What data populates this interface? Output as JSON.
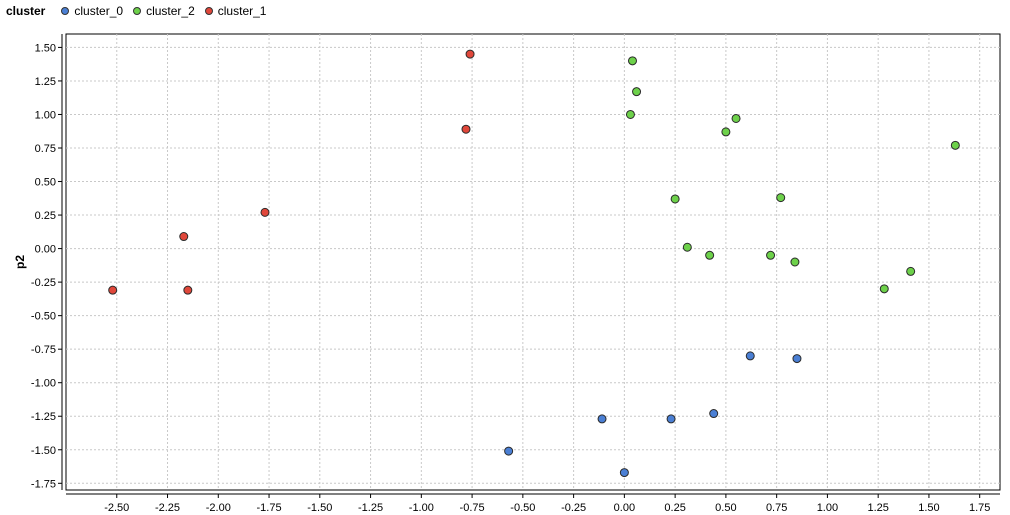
{
  "chart_data": {
    "type": "scatter",
    "title": "",
    "xlabel": "",
    "ylabel": "p2",
    "legend_title": "cluster",
    "legend_position": "top-left",
    "grid": true,
    "xlim": [
      -2.75,
      1.85
    ],
    "ylim": [
      -1.8,
      1.6
    ],
    "x_ticks": [
      -2.5,
      -2.25,
      -2.0,
      -1.75,
      -1.5,
      -1.25,
      -1.0,
      -0.75,
      -0.5,
      -0.25,
      0.0,
      0.25,
      0.5,
      0.75,
      1.0,
      1.25,
      1.5,
      1.75
    ],
    "x_tick_labels": [
      "-2.50",
      "-2.25",
      "-2.00",
      "-1.75",
      "-1.50",
      "-1.25",
      "-1.00",
      "-0.75",
      "-0.50",
      "-0.25",
      "0.00",
      "0.25",
      "0.50",
      "0.75",
      "1.00",
      "1.25",
      "1.50",
      "1.75"
    ],
    "y_ticks": [
      1.5,
      1.25,
      1.0,
      0.75,
      0.5,
      0.25,
      0.0,
      -0.25,
      -0.5,
      -0.75,
      -1.0,
      -1.25,
      -1.5,
      -1.75
    ],
    "y_tick_labels": [
      "1.50",
      "1.25",
      "1.00",
      "0.75",
      "0.50",
      "0.25",
      "0.00",
      "-0.25",
      "-0.50",
      "-0.75",
      "-1.00",
      "-1.25",
      "-1.50",
      "-1.75"
    ],
    "series": [
      {
        "name": "cluster_0",
        "color": "#4a7fd4",
        "x": [
          -0.57,
          -0.11,
          0.0,
          0.23,
          0.44,
          0.62,
          0.85
        ],
        "y": [
          -1.51,
          -1.27,
          -1.67,
          -1.27,
          -1.23,
          -0.8,
          -0.82
        ]
      },
      {
        "name": "cluster_2",
        "color": "#6dd14a",
        "x": [
          0.04,
          0.06,
          0.03,
          0.5,
          0.55,
          1.63,
          0.25,
          0.77,
          0.31,
          0.42,
          0.72,
          0.84,
          1.41,
          1.28
        ],
        "y": [
          1.4,
          1.17,
          1.0,
          0.87,
          0.97,
          0.77,
          0.37,
          0.38,
          0.01,
          -0.05,
          -0.05,
          -0.1,
          -0.17,
          -0.3
        ]
      },
      {
        "name": "cluster_1",
        "color": "#e0473a",
        "x": [
          -0.76,
          -0.78,
          -1.77,
          -2.17,
          -2.52,
          -2.15
        ],
        "y": [
          1.45,
          0.89,
          0.27,
          0.09,
          -0.31,
          -0.31
        ]
      }
    ]
  }
}
